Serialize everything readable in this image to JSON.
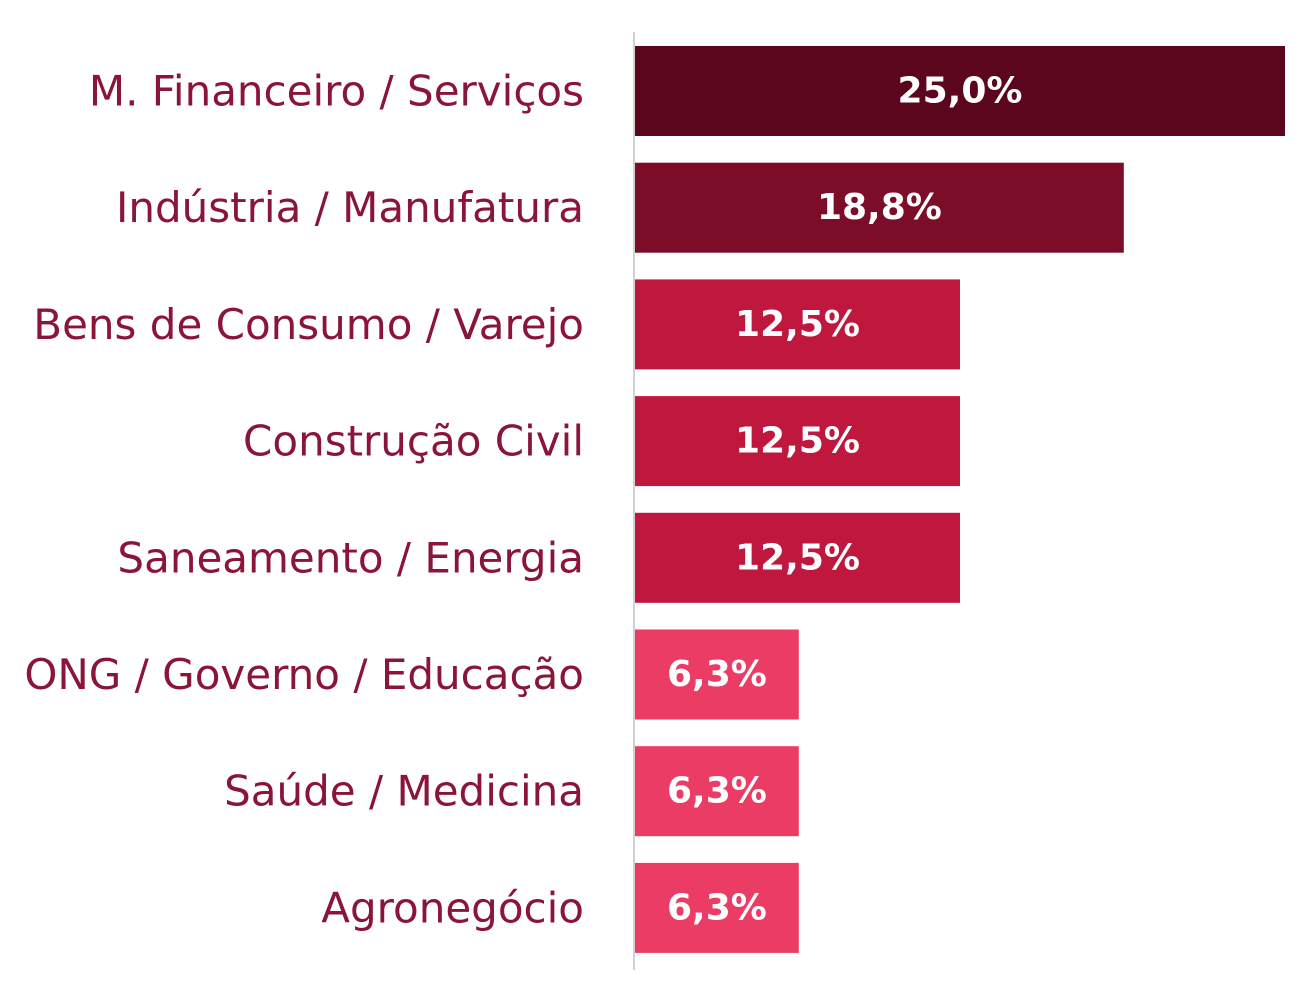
{
  "chart_data": {
    "type": "bar",
    "orientation": "horizontal",
    "categories": [
      "M. Financeiro / Serviços",
      "Indústria / Manufatura",
      "Bens de Consumo / Varejo",
      "Construção Civil",
      "Saneamento / Energia",
      "ONG / Governo / Educação",
      "Saúde / Medicina",
      "Agronegócio"
    ],
    "values": [
      25.0,
      18.8,
      12.5,
      12.5,
      12.5,
      6.3,
      6.3,
      6.3
    ],
    "value_labels": [
      "25,0%",
      "18,8%",
      "12,5%",
      "12,5%",
      "12,5%",
      "6,3%",
      "6,3%",
      "6,3%"
    ],
    "bar_colors": [
      "#5c061d",
      "#7c0d28",
      "#c0173e",
      "#c0173e",
      "#c0173e",
      "#ea3c64",
      "#ea3c64",
      "#ea3c64"
    ],
    "label_color": "#8a1538",
    "value_label_color": "#ffffff",
    "axis_color": "#d0d0d0",
    "xlim": [
      0,
      25
    ],
    "grid": false,
    "legend": "none",
    "title": "",
    "xlabel": "",
    "ylabel": ""
  }
}
